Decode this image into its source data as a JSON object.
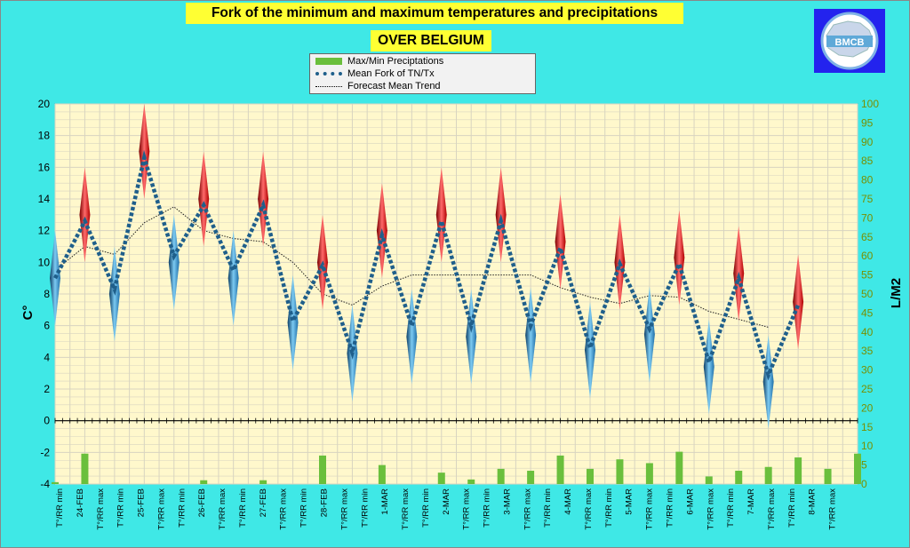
{
  "title_line1": "Fork of the minimum and maximum temperatures and precipitations",
  "title_line2": "OVER BELGIUM",
  "logo_text": "BMCB",
  "legend": {
    "precip": "Max/Min Preciptations",
    "mean_fork": "Mean Fork of TN/Tx",
    "trend": "Forecast Mean Trend"
  },
  "colors": {
    "background": "#3fe8e6",
    "plot_area": "#fff8cc",
    "grid": "#d8d4c0",
    "precip_bar": "#6abf3c",
    "mean_line": "#1f5f8b",
    "min_marker": "#2a8fd0",
    "max_marker": "#e02020",
    "right_axis": "#7a8f00"
  },
  "chart_data": {
    "type": "line",
    "x_labels": [
      "T°/RR min",
      "24-FEB",
      "T°/RR max",
      "T°/RR min",
      "25-FEB",
      "T°/RR max",
      "T°/RR min",
      "26-FEB",
      "T°/RR max",
      "T°/RR min",
      "27-FEB",
      "T°/RR max",
      "T°/RR min",
      "28-FEB",
      "T°/RR max",
      "T°/RR min",
      "1-MAR",
      "T°/RR max",
      "T°/RR min",
      "2-MAR",
      "T°/RR max",
      "T°/RR min",
      "3-MAR",
      "T°/RR max",
      "T°/RR min",
      "4-MAR",
      "T°/RR max",
      "T°/RR min",
      "5-MAR",
      "T°/RR max",
      "T°/RR min",
      "6-MAR",
      "T°/RR max",
      "T°/RR min",
      "7-MAR",
      "T°/RR max",
      "T°/RR min",
      "8-MAR",
      "T°/RR max"
    ],
    "y_left": {
      "label": "C°",
      "min": -4,
      "max": 20,
      "step": 2
    },
    "y_right": {
      "label": "L/M2",
      "min": 0,
      "max": 100,
      "step": 5
    },
    "series": [
      {
        "name": "Mean Fork of TN/Tx",
        "points": [
          {
            "slot": 0,
            "value": 9.0
          },
          {
            "slot": 2,
            "value": 12.6
          },
          {
            "slot": 4,
            "value": 8.3
          },
          {
            "slot": 6,
            "value": 16.6
          },
          {
            "slot": 8,
            "value": 10.4
          },
          {
            "slot": 10,
            "value": 13.6
          },
          {
            "slot": 12,
            "value": 9.5
          },
          {
            "slot": 14,
            "value": 13.6
          },
          {
            "slot": 16,
            "value": 6.3
          },
          {
            "slot": 18,
            "value": 9.8
          },
          {
            "slot": 20,
            "value": 4.3
          },
          {
            "slot": 22,
            "value": 11.7
          },
          {
            "slot": 24,
            "value": 6.0
          },
          {
            "slot": 26,
            "value": 12.6
          },
          {
            "slot": 28,
            "value": 6.0
          },
          {
            "slot": 30,
            "value": 12.6
          },
          {
            "slot": 32,
            "value": 6.0
          },
          {
            "slot": 34,
            "value": 10.9
          },
          {
            "slot": 36,
            "value": 4.6
          },
          {
            "slot": 38,
            "value": 9.9
          },
          {
            "slot": 40,
            "value": 5.8
          },
          {
            "slot": 42,
            "value": 9.9
          },
          {
            "slot": 44,
            "value": 3.7
          },
          {
            "slot": 46,
            "value": 9.0
          },
          {
            "slot": 48,
            "value": 2.9
          },
          {
            "slot": 50,
            "value": 7.3
          }
        ]
      },
      {
        "name": "Forecast Mean Trend",
        "points": [
          {
            "slot": 0,
            "value": 9.5
          },
          {
            "slot": 2,
            "value": 11.0
          },
          {
            "slot": 4,
            "value": 10.5
          },
          {
            "slot": 6,
            "value": 12.5
          },
          {
            "slot": 8,
            "value": 13.5
          },
          {
            "slot": 10,
            "value": 12.0
          },
          {
            "slot": 12,
            "value": 11.5
          },
          {
            "slot": 14,
            "value": 11.3
          },
          {
            "slot": 16,
            "value": 10.0
          },
          {
            "slot": 18,
            "value": 8.0
          },
          {
            "slot": 20,
            "value": 7.3
          },
          {
            "slot": 22,
            "value": 8.5
          },
          {
            "slot": 24,
            "value": 9.2
          },
          {
            "slot": 26,
            "value": 9.2
          },
          {
            "slot": 28,
            "value": 9.2
          },
          {
            "slot": 30,
            "value": 9.2
          },
          {
            "slot": 32,
            "value": 9.2
          },
          {
            "slot": 34,
            "value": 8.4
          },
          {
            "slot": 36,
            "value": 7.8
          },
          {
            "slot": 38,
            "value": 7.4
          },
          {
            "slot": 40,
            "value": 7.9
          },
          {
            "slot": 42,
            "value": 7.8
          },
          {
            "slot": 44,
            "value": 6.9
          },
          {
            "slot": 46,
            "value": 6.4
          },
          {
            "slot": 48,
            "value": 5.9
          }
        ]
      },
      {
        "name": "Max/Min Preciptations",
        "axis": "right",
        "points": [
          {
            "slot": 0,
            "value": 0.5
          },
          {
            "slot": 2,
            "value": 8.0
          },
          {
            "slot": 4,
            "value": 0
          },
          {
            "slot": 6,
            "value": 0
          },
          {
            "slot": 8,
            "value": 0
          },
          {
            "slot": 10,
            "value": 1.0
          },
          {
            "slot": 12,
            "value": 0
          },
          {
            "slot": 14,
            "value": 1.0
          },
          {
            "slot": 16,
            "value": 0
          },
          {
            "slot": 18,
            "value": 7.5
          },
          {
            "slot": 20,
            "value": 0
          },
          {
            "slot": 22,
            "value": 5.0
          },
          {
            "slot": 24,
            "value": 0
          },
          {
            "slot": 26,
            "value": 3.0
          },
          {
            "slot": 28,
            "value": 1.2
          },
          {
            "slot": 30,
            "value": 4.0
          },
          {
            "slot": 32,
            "value": 3.5
          },
          {
            "slot": 34,
            "value": 7.5
          },
          {
            "slot": 36,
            "value": 4.0
          },
          {
            "slot": 38,
            "value": 6.5
          },
          {
            "slot": 40,
            "value": 5.5
          },
          {
            "slot": 42,
            "value": 8.5
          },
          {
            "slot": 44,
            "value": 2.0
          },
          {
            "slot": 46,
            "value": 3.5
          },
          {
            "slot": 48,
            "value": 4.5
          },
          {
            "slot": 50,
            "value": 7.0
          },
          {
            "slot": 52,
            "value": 4.0
          },
          {
            "slot": 54,
            "value": 8.0
          }
        ]
      }
    ],
    "min_markers": [
      {
        "slot": 0,
        "top": 12.0,
        "bottom": 6.0
      },
      {
        "slot": 4,
        "top": 11.0,
        "bottom": 5.0
      },
      {
        "slot": 8,
        "top": 13.0,
        "bottom": 7.0
      },
      {
        "slot": 12,
        "top": 12.0,
        "bottom": 6.0
      },
      {
        "slot": 16,
        "top": 9.2,
        "bottom": 3.2
      },
      {
        "slot": 20,
        "top": 7.3,
        "bottom": 1.2
      },
      {
        "slot": 24,
        "top": 8.3,
        "bottom": 2.3
      },
      {
        "slot": 28,
        "top": 8.3,
        "bottom": 2.3
      },
      {
        "slot": 32,
        "top": 8.4,
        "bottom": 2.4
      },
      {
        "slot": 36,
        "top": 7.5,
        "bottom": 1.4
      },
      {
        "slot": 40,
        "top": 8.5,
        "bottom": 2.4
      },
      {
        "slot": 44,
        "top": 6.4,
        "bottom": 0.4
      },
      {
        "slot": 48,
        "top": 5.4,
        "bottom": -0.5
      }
    ],
    "max_markers": [
      {
        "slot": 2,
        "top": 16.0,
        "bottom": 10.0
      },
      {
        "slot": 6,
        "top": 20.0,
        "bottom": 14.0
      },
      {
        "slot": 10,
        "top": 17.0,
        "bottom": 11.0
      },
      {
        "slot": 14,
        "top": 17.0,
        "bottom": 11.0
      },
      {
        "slot": 18,
        "top": 13.0,
        "bottom": 7.0
      },
      {
        "slot": 22,
        "top": 15.0,
        "bottom": 9.0
      },
      {
        "slot": 26,
        "top": 16.0,
        "bottom": 10.0
      },
      {
        "slot": 30,
        "top": 16.0,
        "bottom": 10.0
      },
      {
        "slot": 34,
        "top": 14.3,
        "bottom": 8.3
      },
      {
        "slot": 38,
        "top": 13.0,
        "bottom": 7.0
      },
      {
        "slot": 42,
        "top": 13.3,
        "bottom": 7.3
      },
      {
        "slot": 46,
        "top": 12.3,
        "bottom": 6.3
      },
      {
        "slot": 50,
        "top": 10.5,
        "bottom": 4.5
      }
    ]
  }
}
